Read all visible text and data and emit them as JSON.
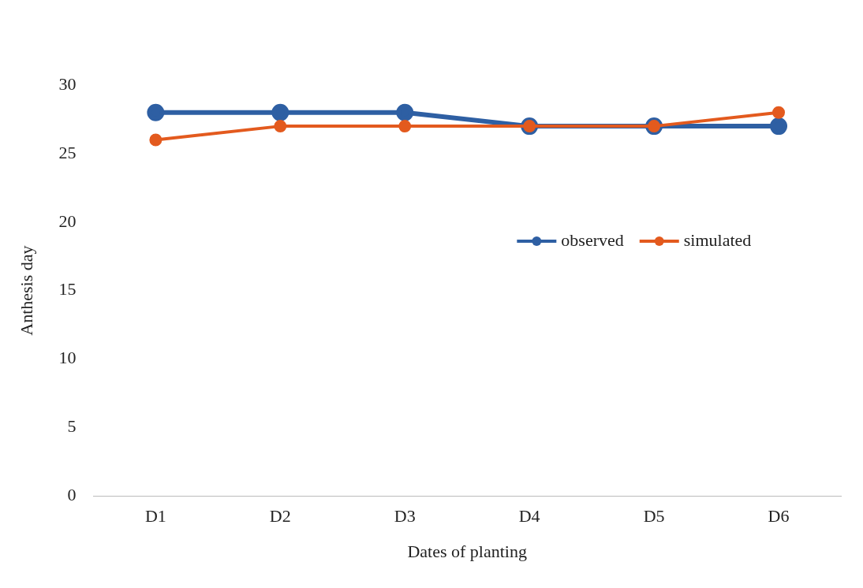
{
  "chart_data": {
    "type": "line",
    "xlabel": "Dates of planting",
    "ylabel": "Anthesis day",
    "categories": [
      "D1",
      "D2",
      "D3",
      "D4",
      "D5",
      "D6"
    ],
    "series": [
      {
        "name": "observed",
        "color": "#2e5fa3",
        "values": [
          28,
          28,
          28,
          27,
          27,
          27
        ]
      },
      {
        "name": "simulated",
        "color": "#e35a1e",
        "values": [
          26,
          27,
          27,
          27,
          27,
          28
        ]
      }
    ],
    "ylim": [
      0,
      30
    ],
    "yticks": [
      0,
      5,
      10,
      15,
      20,
      25,
      30
    ],
    "grid": false,
    "legend": "right",
    "marker": "circle",
    "line_style": "solid"
  }
}
